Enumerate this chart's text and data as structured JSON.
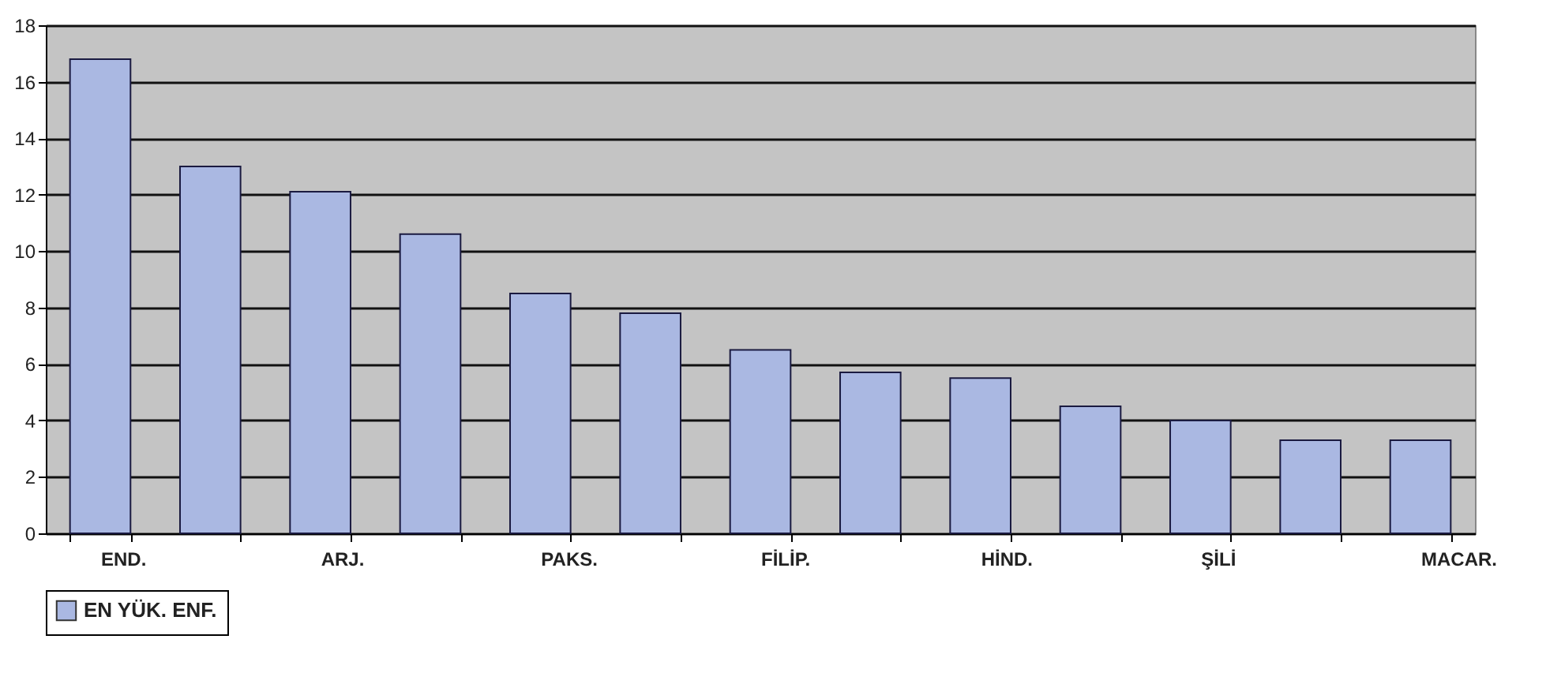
{
  "chart_data": {
    "type": "bar",
    "categories": [
      "END.",
      null,
      "ARJ.",
      null,
      "PAKS.",
      null,
      "FİLİP.",
      null,
      "HİND.",
      null,
      "ŞİLİ",
      null,
      "MACAR."
    ],
    "series": [
      {
        "name": "EN YÜK. ENF.",
        "color": "#aab8e2",
        "values": [
          16.8,
          13.0,
          12.1,
          10.6,
          8.5,
          7.8,
          6.5,
          5.7,
          5.5,
          4.5,
          4.0,
          3.3,
          3.3
        ]
      }
    ],
    "ylim": [
      0,
      18
    ],
    "yticks": [
      0,
      2,
      4,
      6,
      8,
      10,
      12,
      14,
      16,
      18
    ],
    "grid": "y",
    "legend": "bottom left"
  }
}
